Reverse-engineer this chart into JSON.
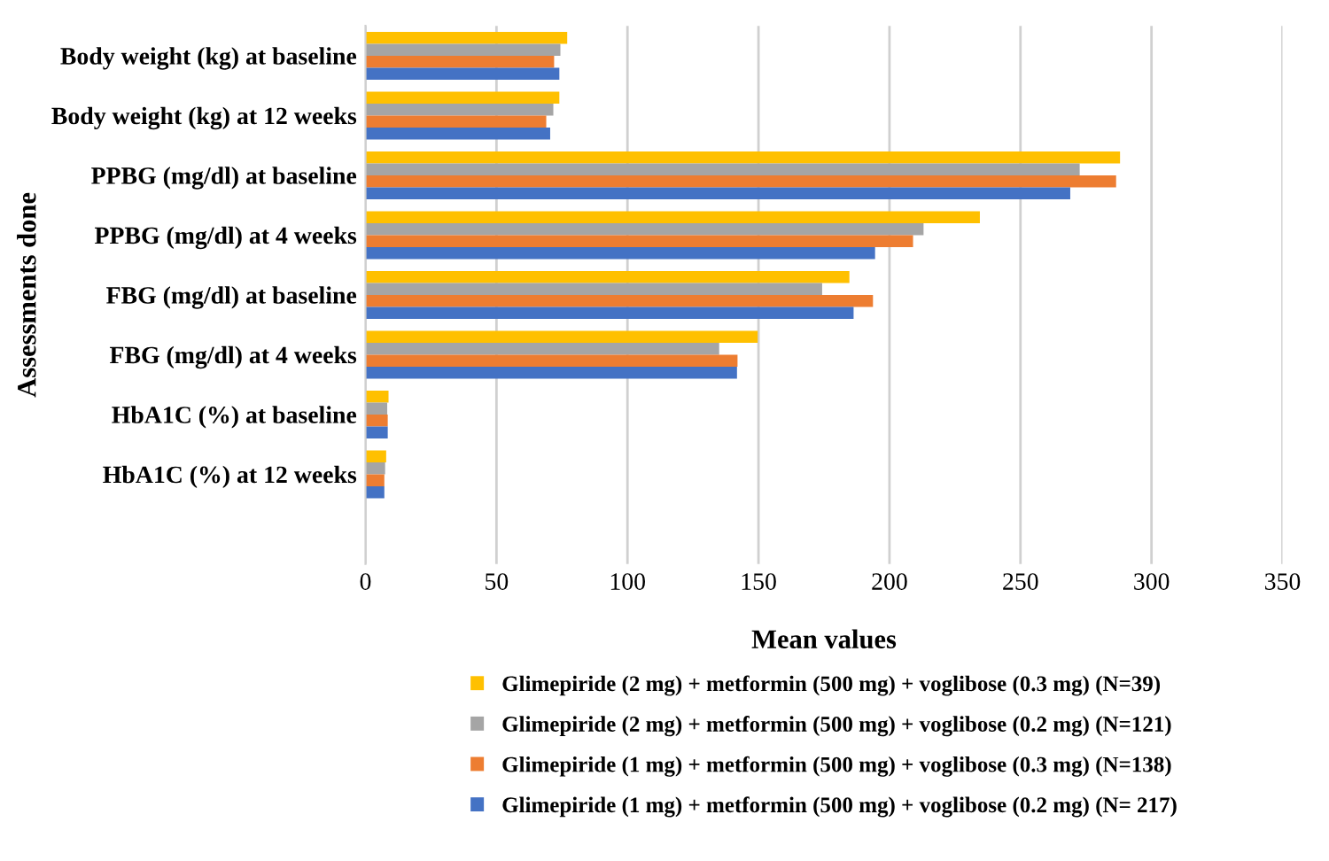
{
  "chart_data": {
    "type": "bar",
    "orientation": "horizontal",
    "xlabel": "Mean values",
    "ylabel": "Assessments done",
    "categories": [
      "Body weight (kg) at baseline",
      "Body weight (kg) at 12 weeks",
      "PPBG (mg/dl) at baseline",
      "PPBG (mg/dl) at 4 weeks",
      "FBG (mg/dl) at baseline",
      "FBG (mg/dl) at 4 weeks",
      "HbA1C (%) at baseline",
      "HbA1C (%) at 12 weeks",
      null
    ],
    "series": [
      {
        "name": "Glimepiride (2 mg) + metformin (500 mg) + voglibose (0.3 mg) (N=39)",
        "color": "#ffc000",
        "values": [
          77,
          74,
          288,
          234.5,
          184.7,
          149.7,
          8.8,
          7.9,
          null
        ]
      },
      {
        "name": "Glimepiride (2 mg) + metformin (500 mg) + voglibose (0.2 mg) (N=121)",
        "color": "#a5a5a5",
        "values": [
          74.4,
          71.7,
          272.6,
          213,
          174.3,
          135,
          8.3,
          7.5,
          null
        ]
      },
      {
        "name": "Glimepiride (1 mg) + metformin (500 mg) + voglibose (0.3 mg) (N=138)",
        "color": "#ed7d31",
        "values": [
          72,
          69,
          286.5,
          209,
          193.7,
          142,
          8.5,
          7.2,
          null
        ]
      },
      {
        "name": "Glimepiride (1 mg) + metformin (500 mg) + voglibose (0.2 mg) (N= 217)",
        "color": "#4472c4",
        "values": [
          74,
          70.5,
          269,
          194.5,
          186.3,
          141.8,
          8.5,
          7.2,
          null
        ]
      }
    ],
    "xlim": [
      0,
      350
    ],
    "xticks": [
      0,
      50,
      100,
      150,
      200,
      250,
      300,
      350
    ],
    "grid": "x",
    "legend": "bottom"
  }
}
